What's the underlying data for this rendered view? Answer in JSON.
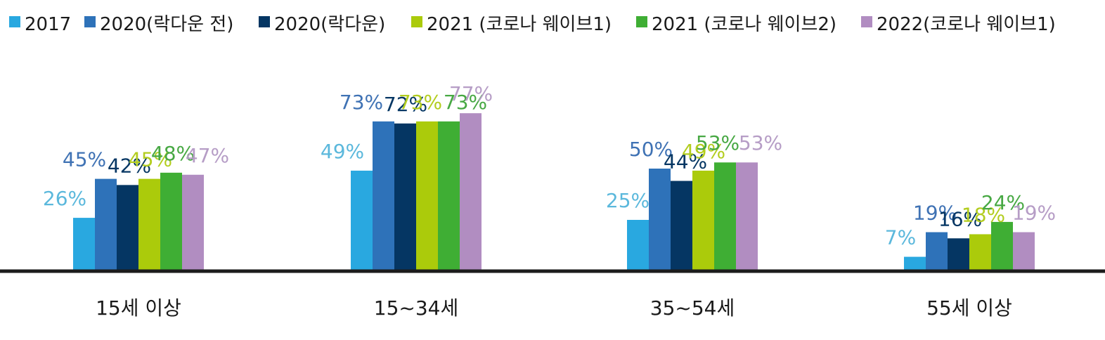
{
  "chart_data": {
    "type": "bar",
    "title": "",
    "xlabel": "",
    "ylabel": "",
    "ylim": [
      0,
      80
    ],
    "grid": false,
    "legend": "top",
    "categories": [
      "15세 이상",
      "15~34세",
      "35~54세",
      "55세 이상"
    ],
    "series": [
      {
        "name": "2017",
        "color": "#29a8e0",
        "label_color": "#5bb8dc",
        "values": [
          26,
          49,
          25,
          7
        ],
        "labels": [
          "26%",
          "49%",
          "25%",
          "7%"
        ]
      },
      {
        "name": "2020(락다운 전)",
        "color": "#2e72b9",
        "label_color": "#3f72b4",
        "values": [
          45,
          73,
          50,
          19
        ],
        "labels": [
          "45%",
          "73%",
          "50%",
          "19%"
        ]
      },
      {
        "name": "2020(락다운)",
        "color": "#053663",
        "label_color": "#053663",
        "values": [
          42,
          72,
          44,
          16
        ],
        "labels": [
          "42%",
          "72%",
          "44%",
          "16%"
        ]
      },
      {
        "name": "2021 (코로나 웨이브1)",
        "color": "#abcb0b",
        "label_color": "#b3cd1f",
        "values": [
          45,
          73,
          49,
          18
        ],
        "labels": [
          "45%",
          "73%",
          "49%",
          "18%"
        ]
      },
      {
        "name": "2021 (코로나 웨이브2)",
        "color": "#3fae34",
        "label_color": "#47a843",
        "values": [
          48,
          73,
          53,
          24
        ],
        "labels": [
          "48%",
          "73%",
          "53%",
          "24%"
        ]
      },
      {
        "name": "2022(코로나 웨이브1)",
        "color": "#b18dc1",
        "label_color": "#b69dc6",
        "values": [
          47,
          77,
          53,
          19
        ],
        "labels": [
          "47%",
          "77%",
          "53%",
          "19%"
        ]
      }
    ]
  }
}
